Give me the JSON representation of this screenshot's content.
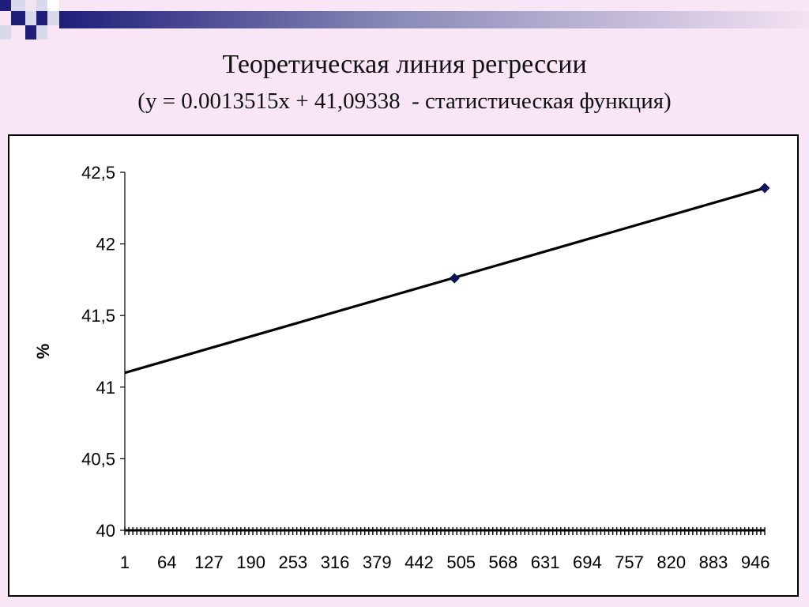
{
  "slide": {
    "title": "Теоретическая линия регрессии",
    "subtitle": "(y = 0.0013515x + 41,09338  - статистическая функция)"
  },
  "colors": {
    "background": "#f8e6f6",
    "deco_dark": "#1f1f7a",
    "deco_light": "#d9d9ec",
    "line": "#000000",
    "marker": "#10106b"
  },
  "chart_data": {
    "type": "line",
    "title": "",
    "xlabel": "",
    "ylabel": "%",
    "xlim": [
      1,
      960
    ],
    "ylim": [
      40,
      42.5
    ],
    "yticks": [
      40,
      40.5,
      41,
      41.5,
      42,
      42.5
    ],
    "ytick_labels": [
      "40",
      "40,5",
      "41",
      "41,5",
      "42",
      "42,5"
    ],
    "xtick_values": [
      1,
      64,
      127,
      190,
      253,
      316,
      379,
      442,
      505,
      568,
      631,
      694,
      757,
      820,
      883,
      946
    ],
    "xtick_labels": [
      "1",
      "64",
      "127",
      "190",
      "253",
      "316",
      "379",
      "442",
      "505",
      "568",
      "631",
      "694",
      "757",
      "820",
      "883",
      "946"
    ],
    "regression": {
      "slope": 0.0013515,
      "intercept": 41.09338
    },
    "line_points": {
      "x": [
        1,
        960
      ],
      "y": [
        41.1,
        42.39
      ]
    },
    "markers": {
      "x": [
        495,
        960
      ],
      "y": [
        41.76,
        42.39
      ]
    }
  }
}
